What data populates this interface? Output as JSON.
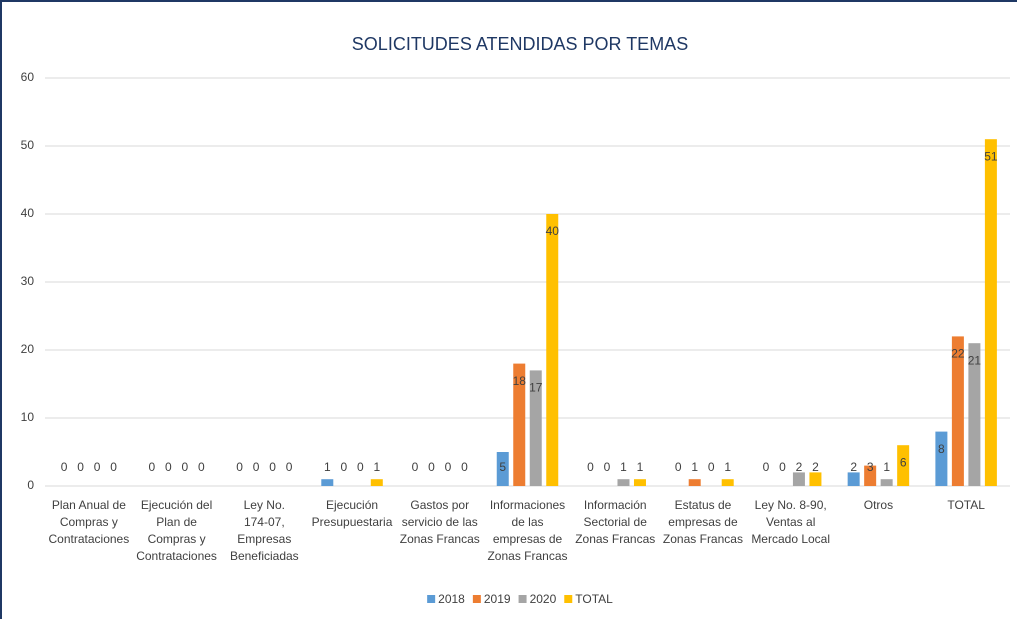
{
  "chart_data": {
    "type": "bar",
    "title": "SOLICITUDES ATENDIDAS POR TEMAS",
    "categories": [
      "Plan Anual de Compras y Contrataciones",
      "Ejecución del Plan de Compras y Contrataciones",
      "Ley No. 174-07, Empresas Beneficiadas",
      "Ejecución Presupuestaria",
      "Gastos por servicio de las Zonas Francas",
      "Informaciones de las empresas de Zonas Francas",
      "Información Sectorial de Zonas Francas",
      "Estatus de empresas de Zonas Francas",
      "Ley No. 8-90, Ventas al Mercado Local",
      "Otros",
      "TOTAL"
    ],
    "series": [
      {
        "name": "2018",
        "color": "#5b9bd5",
        "values": [
          0,
          0,
          0,
          1,
          0,
          5,
          0,
          0,
          0,
          2,
          8
        ]
      },
      {
        "name": "2019",
        "color": "#ed7d31",
        "values": [
          0,
          0,
          0,
          0,
          0,
          18,
          0,
          1,
          0,
          3,
          22
        ]
      },
      {
        "name": "2020",
        "color": "#a5a5a5",
        "values": [
          0,
          0,
          0,
          0,
          0,
          17,
          1,
          0,
          2,
          1,
          21
        ]
      },
      {
        "name": "TOTAL",
        "color": "#ffc000",
        "values": [
          0,
          0,
          0,
          1,
          0,
          40,
          1,
          1,
          2,
          6,
          51
        ]
      }
    ],
    "ylim": [
      0,
      60
    ],
    "yticks": [
      0,
      10,
      20,
      30,
      40,
      50,
      60
    ],
    "grid": true,
    "legend": "bottom"
  }
}
